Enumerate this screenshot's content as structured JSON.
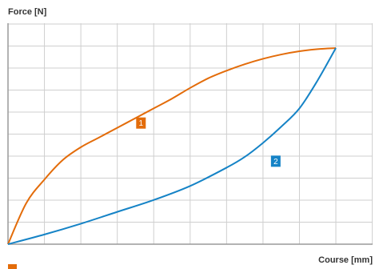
{
  "chart_data": {
    "type": "line",
    "ylabel": "Force [N]",
    "xlabel": "Course [mm]",
    "xlim": [
      0,
      10
    ],
    "ylim": [
      0,
      10
    ],
    "grid": true,
    "legend": "none",
    "series": [
      {
        "marker": "1",
        "color": "#e36c0a",
        "x": [
          0,
          0.5,
          1,
          1.5,
          2,
          2.5,
          3,
          3.5,
          4,
          4.5,
          5,
          5.5,
          6,
          6.5,
          7,
          7.5,
          8,
          8.5,
          9
        ],
        "y": [
          0,
          1.9,
          3.0,
          3.9,
          4.5,
          4.95,
          5.4,
          5.85,
          6.3,
          6.75,
          7.25,
          7.7,
          8.05,
          8.35,
          8.6,
          8.8,
          8.95,
          9.05,
          9.1
        ]
      },
      {
        "marker": "2",
        "color": "#1583c6",
        "x": [
          0,
          1,
          2,
          3,
          4,
          5,
          6,
          6.5,
          7,
          7.5,
          8,
          8.5,
          9
        ],
        "y": [
          0,
          0.45,
          0.95,
          1.5,
          2.05,
          2.7,
          3.55,
          4.05,
          4.7,
          5.45,
          6.3,
          7.6,
          9.1
        ]
      }
    ]
  }
}
